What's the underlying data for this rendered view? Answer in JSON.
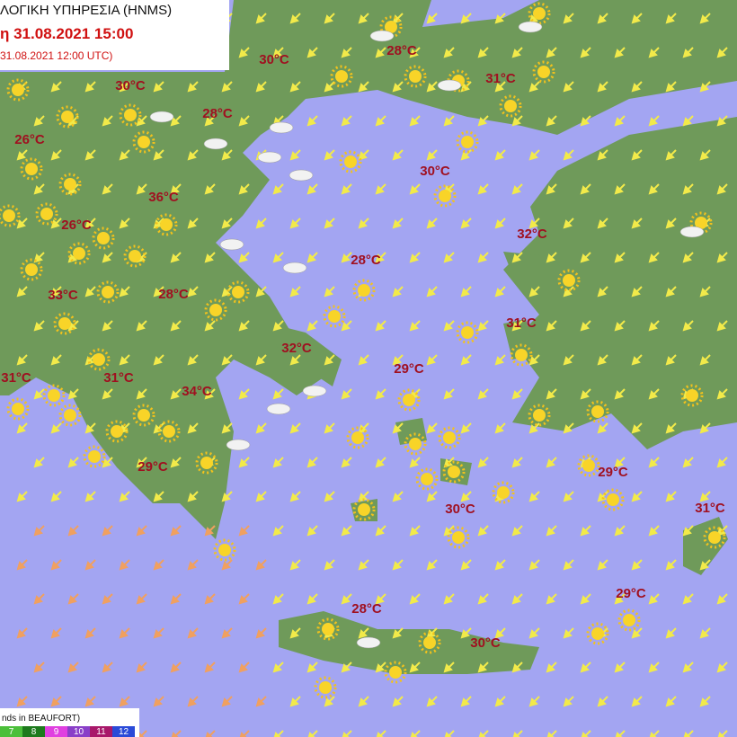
{
  "header": {
    "title": "ΛΟΓΙΚΗ ΥΠΗΡΕΣΙΑ (HNMS)",
    "time": "η 31.08.2021 15:00",
    "run": "31.08.2021 12:00 UTC)"
  },
  "temperatures": [
    "30°C",
    "28°C",
    "31°C",
    "30°C",
    "28°C",
    "26°C",
    "30°C",
    "36°C",
    "26°C",
    "32°C",
    "28°C",
    "33°C",
    "28°C",
    "31°C",
    "32°C",
    "29°C",
    "31°C",
    "31°C",
    "34°C",
    "29°C",
    "29°C",
    "30°C",
    "31°C",
    "29°C",
    "28°C",
    "30°C"
  ],
  "legend": {
    "title": "nds in BEAUFORT)",
    "scale": [
      "7",
      "8",
      "9",
      "10",
      "11",
      "12"
    ]
  }
}
